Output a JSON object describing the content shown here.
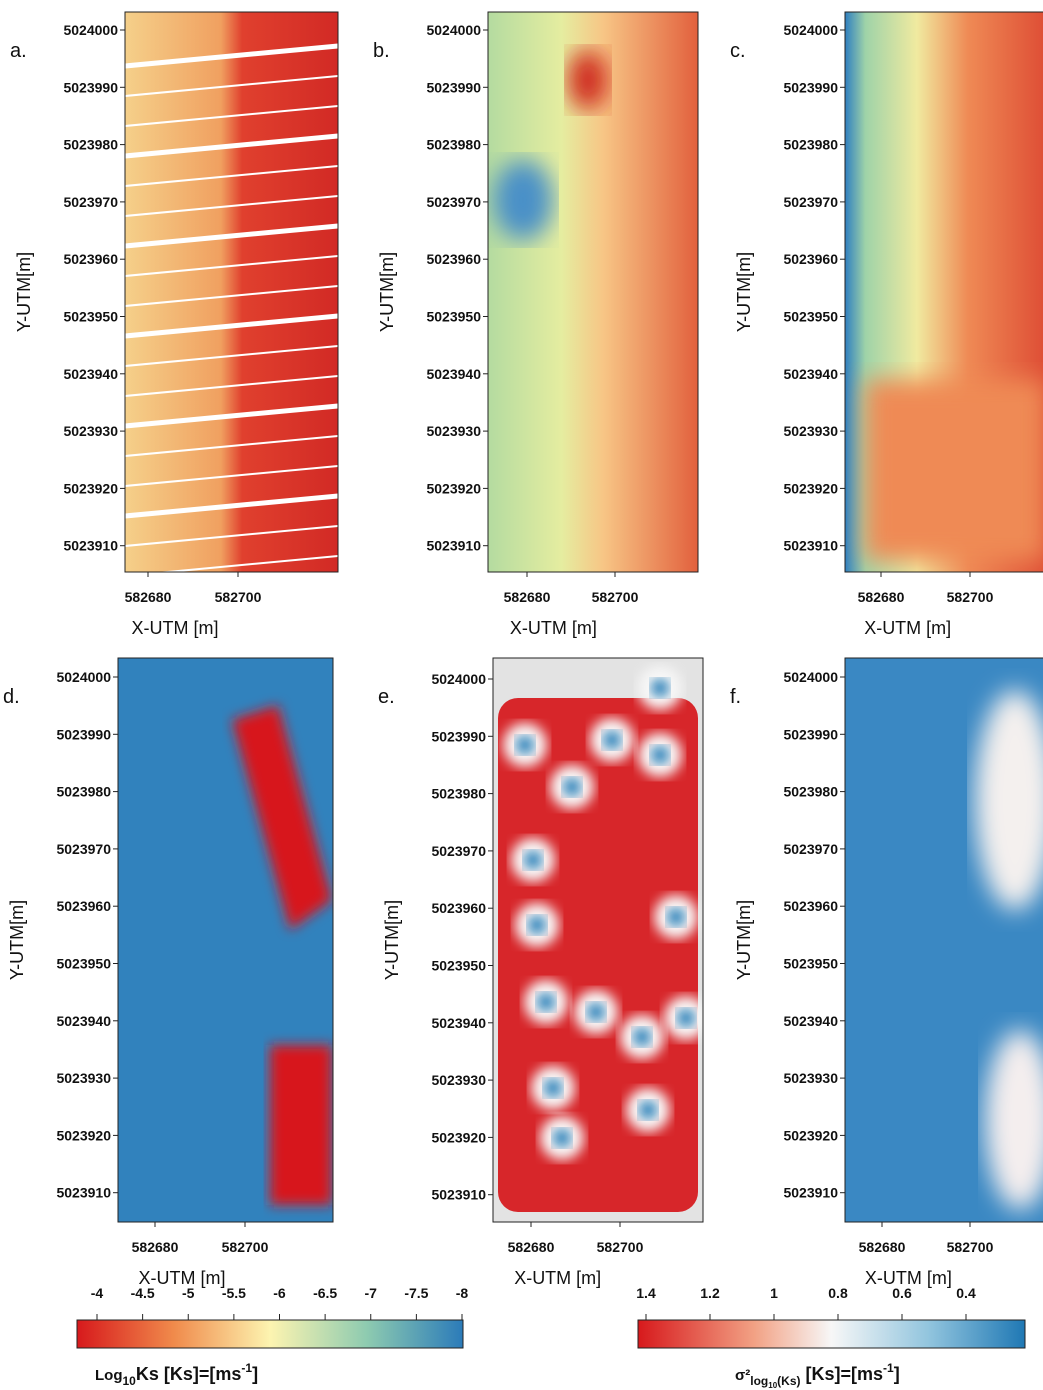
{
  "panels": [
    {
      "label": "a.",
      "xlabel": "X-UTM [m]",
      "ylabel": "Y-UTM[m]",
      "xticks": [
        582680,
        582700
      ],
      "yticks": [
        5024000,
        5023990,
        5023980,
        5023970,
        5023960,
        5023950,
        5023940,
        5023930,
        5023920,
        5023910
      ]
    },
    {
      "label": "b.",
      "xlabel": "X-UTM [m]",
      "ylabel": "Y-UTM[m]",
      "xticks": [
        582680,
        582700
      ],
      "yticks": [
        5024000,
        5023990,
        5023980,
        5023970,
        5023960,
        5023950,
        5023940,
        5023930,
        5023920,
        5023910
      ]
    },
    {
      "label": "c.",
      "xlabel": "X-UTM [m]",
      "ylabel": "Y-UTM[m]",
      "xticks": [
        582680,
        582700
      ],
      "yticks": [
        5024000,
        5023990,
        5023980,
        5023970,
        5023960,
        5023950,
        5023940,
        5023930,
        5023920,
        5023910
      ]
    },
    {
      "label": "d.",
      "xlabel": "X-UTM [m]",
      "ylabel": "Y-UTM[m]",
      "xticks": [
        582680,
        582700
      ],
      "yticks": [
        5024000,
        5023990,
        5023980,
        5023970,
        5023960,
        5023950,
        5023940,
        5023930,
        5023920,
        5023910
      ]
    },
    {
      "label": "e.",
      "xlabel": "X-UTM [m]",
      "ylabel": "Y-UTM[m]",
      "xticks": [
        582680,
        582700
      ],
      "yticks": [
        5024000,
        5023990,
        5023980,
        5023970,
        5023960,
        5023950,
        5023940,
        5023930,
        5023920,
        5023910
      ]
    },
    {
      "label": "f.",
      "xlabel": "X-UTM [m]",
      "ylabel": "Y-UTM[m]",
      "xticks": [
        582680,
        582700
      ],
      "yticks": [
        5024000,
        5023990,
        5023980,
        5023970,
        5023960,
        5023950,
        5023940,
        5023930,
        5023920,
        5023910
      ]
    }
  ],
  "colorbars": [
    {
      "ticks": [
        -4,
        -4.5,
        -5,
        -5.5,
        -6,
        -6.5,
        -7,
        -7.5,
        -8
      ],
      "label": {
        "main": "Log",
        "sub": "10",
        "rest": "Ks [Ks]=[ms",
        "sup": "-1",
        "end": "]"
      }
    },
    {
      "ticks": [
        1.4,
        1.2,
        1,
        0.8,
        0.6,
        0.4
      ],
      "label": {
        "main": "σ²",
        "sub": "log",
        "subsub": "10",
        "sub2": "(Ks)",
        "rest": " [Ks]=[ms",
        "sup": "-1",
        "end": "]"
      }
    }
  ]
}
